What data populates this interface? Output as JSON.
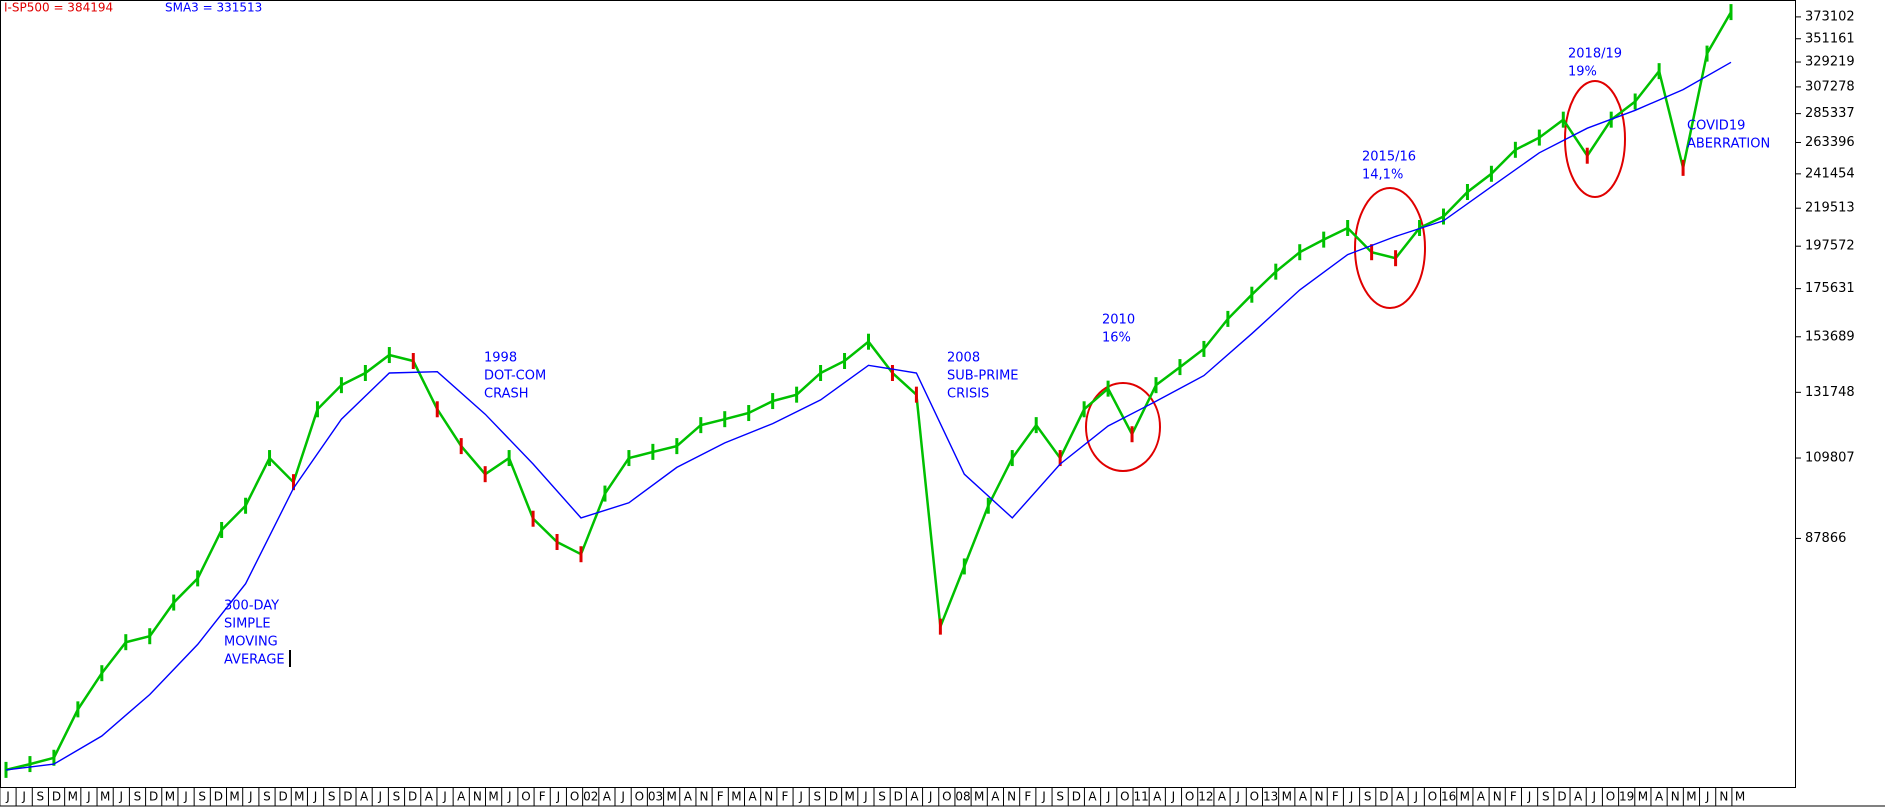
{
  "chart_data": {
    "type": "line",
    "log_scale": true,
    "ylim": [
      43984,
      391000
    ],
    "yticks": [
      87866,
      109807,
      131748,
      153689,
      175631,
      197572,
      219513,
      241454,
      263396,
      285337,
      307278,
      329219,
      351161,
      373102
    ],
    "x_tick_labels": [
      "J",
      "J",
      "S",
      "D",
      "M",
      "J",
      "M",
      "J",
      "S",
      "D",
      "M",
      "J",
      "S",
      "D",
      "M",
      "J",
      "S",
      "D",
      "M",
      "J",
      "S",
      "D",
      "A",
      "J",
      "S",
      "D",
      "A",
      "J",
      "A",
      "N",
      "M",
      "J",
      "O",
      "F",
      "J",
      "O",
      "02",
      "A",
      "J",
      "O",
      "03",
      "M",
      "A",
      "N",
      "F",
      "M",
      "A",
      "N",
      "F",
      "J",
      "S",
      "D",
      "M",
      "J",
      "S",
      "D",
      "A",
      "J",
      "O",
      "08",
      "M",
      "A",
      "N",
      "F",
      "J",
      "S",
      "D",
      "A",
      "J",
      "O",
      "11",
      "A",
      "J",
      "O",
      "12",
      "A",
      "J",
      "O",
      "13",
      "M",
      "A",
      "N",
      "F",
      "J",
      "S",
      "D",
      "A",
      "J",
      "O",
      "16",
      "M",
      "A",
      "N",
      "F",
      "J",
      "S",
      "D",
      "A",
      "J",
      "O",
      "19",
      "M",
      "A",
      "N",
      "M",
      "J",
      "N",
      "M"
    ],
    "series": [
      {
        "name": "I-SP500 = 384194",
        "color": "#e00000",
        "up_color": "#00c000",
        "values": [
          46250,
          47000,
          47830,
          54700,
          60470,
          65900,
          67000,
          73550,
          78650,
          89950,
          96200,
          109800,
          102700,
          125700,
          134400,
          139000,
          146100,
          143700,
          125700,
          113500,
          105000,
          109800,
          92800,
          87000,
          84100,
          99500,
          109800,
          111700,
          113500,
          120300,
          122300,
          124400,
          128600,
          130900,
          139000,
          143700,
          151600,
          139000,
          130900,
          68800,
          81300,
          96200,
          109800,
          120300,
          109800,
          125700,
          133100,
          117300,
          134400,
          141300,
          148600,
          161500,
          172700,
          184100,
          194300,
          201200,
          207800,
          194300,
          191100,
          207800,
          214500,
          229600,
          241500,
          258100,
          267000,
          280600,
          253900,
          280600,
          295100,
          321000,
          245500,
          337000,
          378100
        ]
      },
      {
        "name": "SMA3 = 331513",
        "color": "#0000ff",
        "values": [
          46250,
          47000,
          50800,
          57000,
          65500,
          77500,
          101000,
          122300,
          139000,
          139500,
          124000,
          108000,
          93000,
          97000,
          107000,
          114500,
          120800,
          129000,
          142000,
          139000,
          105000,
          93000,
          108000,
          120000,
          128500,
          138000,
          155000,
          175000,
          193000,
          203000,
          212000,
          233000,
          256000,
          274000,
          288000,
          305000,
          329000
        ]
      }
    ],
    "annotations": [
      {
        "lines": [
          "300-DAY",
          "SIMPLE",
          "MOVING",
          "AVERAGE"
        ]
      },
      {
        "lines": [
          "1998",
          "DOT-COM",
          "CRASH"
        ]
      },
      {
        "lines": [
          "2008",
          "SUB-PRIME",
          "CRISIS"
        ]
      },
      {
        "lines": [
          "2010",
          "16%"
        ]
      },
      {
        "lines": [
          "2015/16",
          "14,1%"
        ]
      },
      {
        "lines": [
          "2018/19",
          "19%"
        ]
      },
      {
        "lines": [
          "COVID19",
          "ABERRATION"
        ]
      }
    ]
  }
}
